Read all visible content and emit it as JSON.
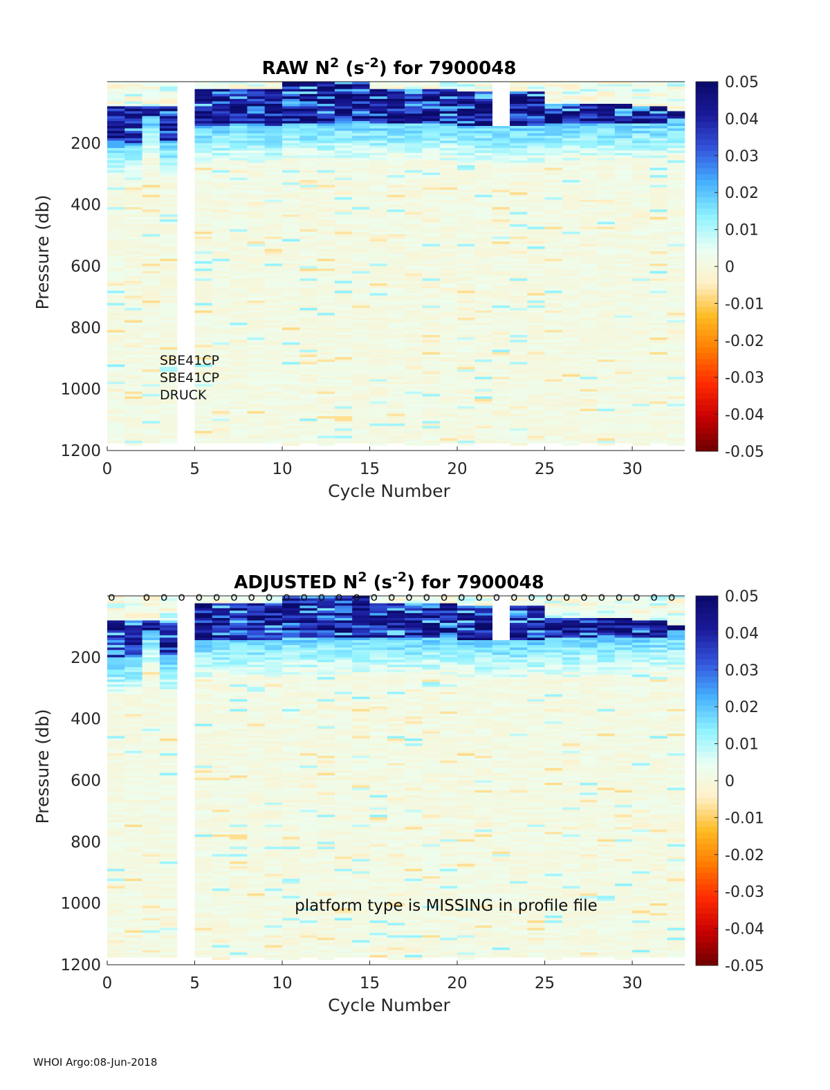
{
  "footer": "WHOI Argo:08-Jun-2018",
  "colorbar": {
    "ticks": [
      "0.05",
      "0.04",
      "0.03",
      "0.02",
      "0.01",
      "0",
      "-0.01",
      "-0.02",
      "-0.03",
      "-0.04",
      "-0.05"
    ],
    "range": [
      -0.05,
      0.05
    ],
    "colormap": [
      "#6e0000",
      "#c80000",
      "#ff2a00",
      "#ff7a00",
      "#ffbb22",
      "#fff0c8",
      "#eafff4",
      "#8ef2ff",
      "#45b0ff",
      "#3355dd",
      "#1a1a9a",
      "#0a0a6a"
    ]
  },
  "chart_data": [
    {
      "type": "heatmap",
      "title": "RAW N² (s⁻²) for 7900048",
      "title_parts": {
        "prefix": "RAW N",
        "sup1": "2",
        "mid": " (s",
        "sup2": "-2",
        "suffix": ") for 7900048"
      },
      "xlabel": "Cycle Number",
      "ylabel": "Pressure (db)",
      "xlim": [
        0,
        33
      ],
      "ylim": [
        1200,
        0
      ],
      "xticks": [
        "0",
        "5",
        "10",
        "15",
        "20",
        "25",
        "30"
      ],
      "yticks": [
        "200",
        "400",
        "600",
        "800",
        "1000",
        "1200"
      ],
      "missing_cycles": [
        4
      ],
      "missing_top_segment": {
        "cycle": 22,
        "pressure_max": 140
      },
      "approx_strong_layer_pressure": [
        [
          0,
          80,
          200
        ],
        [
          2,
          80,
          110
        ],
        [
          3,
          80,
          190
        ],
        [
          5,
          20,
          140
        ],
        [
          10,
          0,
          130
        ],
        [
          15,
          20,
          130
        ],
        [
          20,
          30,
          140
        ],
        [
          25,
          70,
          130
        ],
        [
          30,
          80,
          130
        ],
        [
          32,
          90,
          120
        ]
      ],
      "annotations": [
        "SBE41CP",
        "SBE41CP",
        "DRUCK"
      ],
      "qc_markers": []
    },
    {
      "type": "heatmap",
      "title": "ADJUSTED N² (s⁻²) for 7900048",
      "title_parts": {
        "prefix": "ADJUSTED N",
        "sup1": "2",
        "mid": " (s",
        "sup2": "-2",
        "suffix": ") for 7900048"
      },
      "xlabel": "Cycle Number",
      "ylabel": "Pressure (db)",
      "xlim": [
        0,
        33
      ],
      "ylim": [
        1200,
        0
      ],
      "xticks": [
        "0",
        "5",
        "10",
        "15",
        "20",
        "25",
        "30"
      ],
      "yticks": [
        "200",
        "400",
        "600",
        "800",
        "1000",
        "1200"
      ],
      "missing_cycles": [
        4
      ],
      "missing_top_segment": {
        "cycle": 22,
        "pressure_max": 140
      },
      "approx_strong_layer_pressure": [
        [
          0,
          80,
          200
        ],
        [
          2,
          80,
          110
        ],
        [
          3,
          80,
          190
        ],
        [
          5,
          20,
          140
        ],
        [
          10,
          0,
          130
        ],
        [
          15,
          20,
          130
        ],
        [
          20,
          30,
          140
        ],
        [
          25,
          70,
          130
        ],
        [
          30,
          80,
          130
        ],
        [
          32,
          90,
          120
        ]
      ],
      "annotations": [
        "platform type is MISSING in profile file"
      ],
      "qc_markers": [
        0,
        2,
        3,
        4,
        5,
        6,
        7,
        8,
        9,
        10,
        11,
        12,
        13,
        14,
        15,
        16,
        17,
        18,
        19,
        20,
        21,
        22,
        23,
        24,
        25,
        26,
        27,
        28,
        29,
        30,
        31,
        32
      ],
      "qc_marker_symbol": "o"
    }
  ]
}
